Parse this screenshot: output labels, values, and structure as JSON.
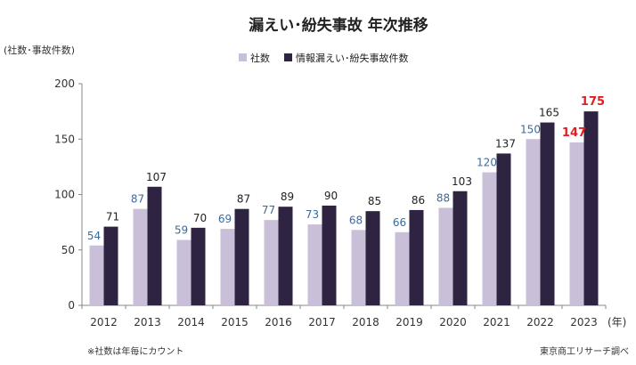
{
  "chart_data": {
    "type": "bar",
    "title": "漏えい･紛失事故 年次推移",
    "ylabel": "(社数･事故件数)",
    "xunit": "(年)",
    "ylim": [
      0,
      200
    ],
    "yticks": [
      0,
      50,
      100,
      150,
      200
    ],
    "categories": [
      "2012",
      "2013",
      "2014",
      "2015",
      "2016",
      "2017",
      "2018",
      "2019",
      "2020",
      "2021",
      "2022",
      "2023"
    ],
    "series": [
      {
        "name": "社数",
        "values": [
          54,
          87,
          59,
          69,
          77,
          73,
          68,
          66,
          88,
          120,
          150,
          147
        ],
        "color": "#c9bfd8",
        "label_color": "#3a6a9c"
      },
      {
        "name": "情報漏えい･紛失事故件数",
        "values": [
          71,
          107,
          70,
          87,
          89,
          90,
          85,
          86,
          103,
          137,
          165,
          175
        ],
        "color": "#2e2340",
        "label_color": "#222222"
      }
    ],
    "highlight_index": 11,
    "highlight_label_color": "#e02020",
    "legend_position": "top-center",
    "grid": false,
    "note": "※社数は年毎にカウント",
    "source": "東京商工リサーチ調べ"
  }
}
